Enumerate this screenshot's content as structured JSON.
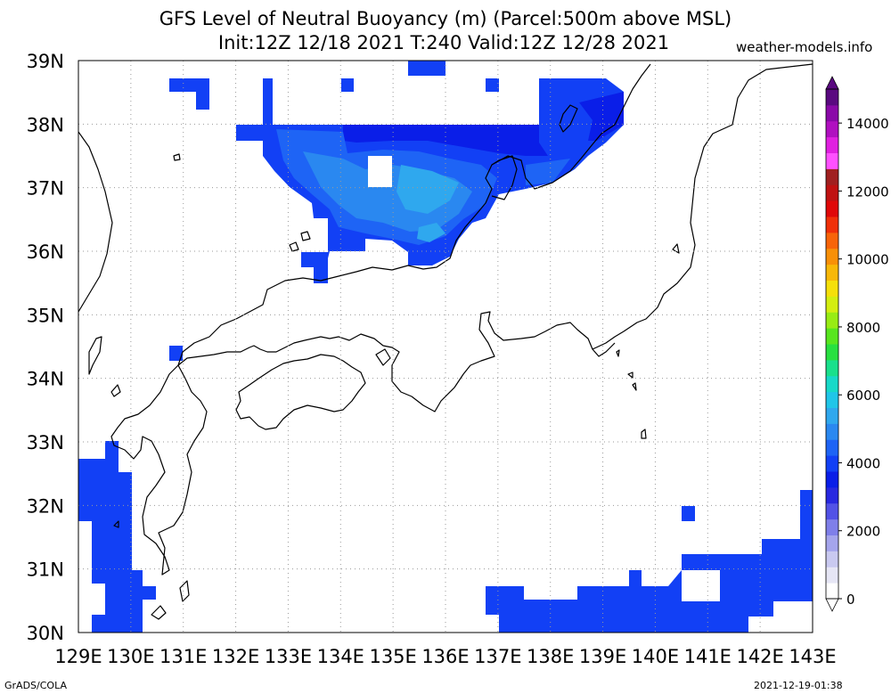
{
  "header": {
    "title_line1": "GFS Level of Neutral Buoyancy (m) (Parcel:500m above MSL)",
    "title_line2": "Init:12Z 12/18 2021 T:240 Valid:12Z 12/28 2021",
    "site": "weather-models.info"
  },
  "footer": {
    "left": "GrADS/COLA",
    "right": "2021-12-19-01:38"
  },
  "axes": {
    "lon_labels": [
      "129E",
      "130E",
      "131E",
      "132E",
      "133E",
      "134E",
      "135E",
      "136E",
      "137E",
      "138E",
      "139E",
      "140E",
      "141E",
      "142E",
      "143E"
    ],
    "lat_labels": [
      "39N",
      "38N",
      "37N",
      "36N",
      "35N",
      "34N",
      "33N",
      "32N",
      "31N",
      "30N"
    ],
    "lon_range": [
      129,
      143
    ],
    "lat_range": [
      30,
      39
    ]
  },
  "colorbar": {
    "labels": [
      "14000",
      "12000",
      "10000",
      "8000",
      "6000",
      "4000",
      "2000",
      "0"
    ],
    "range": [
      0,
      15000
    ],
    "colors": [
      "#ffffff",
      "#e6e6f5",
      "#c9c9f0",
      "#a5a5ec",
      "#7f7fe9",
      "#5252e6",
      "#2828e0",
      "#0a1ee8",
      "#1240f5",
      "#1e64f5",
      "#2a88f0",
      "#2fa8ee",
      "#20c6e8",
      "#17d9c8",
      "#19e08c",
      "#28e040",
      "#58e61e",
      "#98ec14",
      "#d4ee10",
      "#f5e00a",
      "#f8b808",
      "#f89008",
      "#f86408",
      "#f03008",
      "#e00808",
      "#c01212",
      "#a02020",
      "#ff50ff",
      "#e020e0",
      "#b010c0",
      "#8a08a8",
      "#5a0880"
    ]
  },
  "layers": {
    "coastline_color": "#000000",
    "field_color_blue": "#1240f5",
    "field_color_deep": "#0a1ee8",
    "field_color_mid": "#1e64f5",
    "field_color_light": "#2a88f0",
    "field_color_cyan": "#2fa8ee"
  }
}
